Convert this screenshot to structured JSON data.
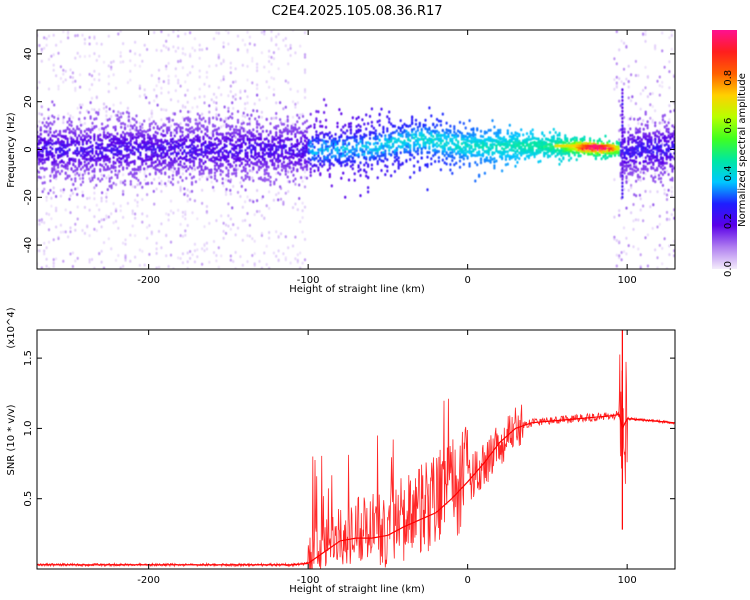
{
  "title": "C2E4.2025.105.08.36.R17",
  "chart_data": [
    {
      "type": "heatmap",
      "title": "C2E4.2025.105.08.36.R17",
      "xlabel": "Height of straight line (km)",
      "ylabel": "Frequency (Hz)",
      "xlim": [
        -270,
        130
      ],
      "ylim": [
        -50,
        50
      ],
      "x_ticks": [
        -200,
        -100,
        0,
        100
      ],
      "x_tick_labels": [
        "-200",
        "-100",
        "0",
        "100"
      ],
      "y_ticks": [
        -40,
        -20,
        0,
        20,
        40
      ],
      "y_tick_labels": [
        "-40",
        "-20",
        "0",
        "20",
        "40"
      ],
      "grid": false,
      "colorbar": {
        "label": "Normalized spectral amplitude",
        "range": [
          0,
          1
        ],
        "ticks": [
          0.0,
          0.2,
          0.4,
          0.6,
          0.8
        ],
        "tick_labels": [
          "0.0",
          "0.2",
          "0.4",
          "0.6",
          "0.8"
        ],
        "colormap": [
          "#f4ecfb",
          "#b07ef0",
          "#5a00e8",
          "#1e1eff",
          "#00c8ff",
          "#00e8a0",
          "#40ff20",
          "#b8ff00",
          "#ffd000",
          "#ff6000",
          "#ff1e1e",
          "#ff1090"
        ]
      },
      "regions": [
        {
          "x": [
            -270,
            -100
          ],
          "description": "broadband diffuse, strong band |f|<10 Hz"
        },
        {
          "x": [
            -100,
            95
          ],
          "description": "narrowing band converging near 0 Hz, peak ~80 km"
        },
        {
          "x": [
            95,
            130
          ],
          "description": "broadband diffuse"
        }
      ]
    },
    {
      "type": "line",
      "xlabel": "Height of straight line (km)",
      "ylabel": "SNR (10 * v/v)",
      "y_multiplier": "(x10^4)",
      "xlim": [
        -270,
        130
      ],
      "ylim": [
        0,
        1.7
      ],
      "x_ticks": [
        -200,
        -100,
        0,
        100
      ],
      "x_tick_labels": [
        "-200",
        "-100",
        "0",
        "100"
      ],
      "y_ticks": [
        0.5,
        1.0,
        1.5
      ],
      "y_tick_labels": [
        "0.5",
        "1.0",
        "1.5"
      ],
      "grid": false,
      "series": [
        {
          "color": "#ff0000",
          "x": [
            -270,
            -200,
            -150,
            -110,
            -100,
            -90,
            -80,
            -70,
            -60,
            -50,
            -40,
            -30,
            -20,
            -10,
            0,
            10,
            20,
            30,
            40,
            50,
            60,
            70,
            80,
            90,
            95,
            97,
            100,
            110,
            120,
            130
          ],
          "y": [
            0.03,
            0.03,
            0.03,
            0.03,
            0.04,
            0.12,
            0.2,
            0.22,
            0.22,
            0.24,
            0.3,
            0.35,
            0.4,
            0.5,
            0.62,
            0.75,
            0.9,
            1.0,
            1.04,
            1.05,
            1.06,
            1.07,
            1.08,
            1.09,
            1.1,
            1.0,
            1.07,
            1.06,
            1.05,
            1.04
          ]
        }
      ]
    }
  ]
}
